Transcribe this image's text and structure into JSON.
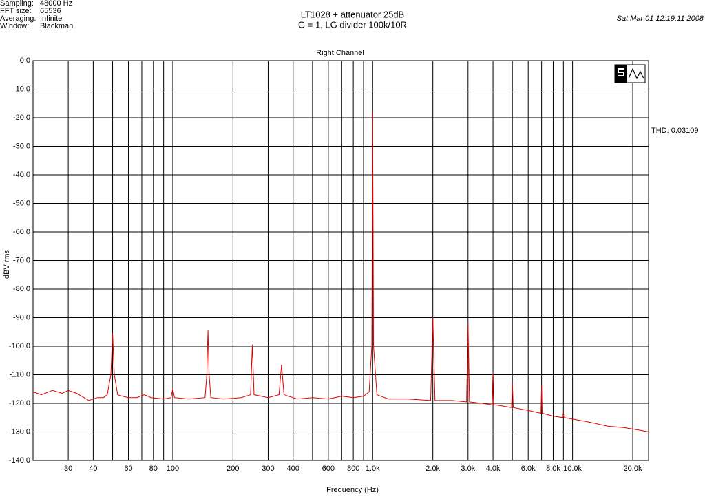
{
  "header": {
    "info": [
      {
        "label": "Sampling:",
        "value": "48000 Hz"
      },
      {
        "label": "FFT size:",
        "value": "65536"
      },
      {
        "label": "Averaging:",
        "value": "Infinite"
      },
      {
        "label": "Window:",
        "value": "Blackman"
      }
    ],
    "timestamp": "Sat Mar 01 12:19:11 2008",
    "thd": "THD: 0.03109"
  },
  "chart_data": {
    "type": "line",
    "title": "LT1028 + attenuator 25dB",
    "subtitle": "G = 1, LG divider 100k/10R",
    "plot_title": "Right Channel",
    "x_label": "Frequency (Hz)",
    "y_label": "dBV rms",
    "xscale": "log",
    "xlim": [
      20,
      24000
    ],
    "ylim": [
      -140,
      0
    ],
    "xticks": [
      30,
      40,
      60,
      80,
      100,
      200,
      300,
      400,
      600,
      800,
      {
        "value": 1000,
        "label": "1.0k"
      },
      {
        "value": 2000,
        "label": "2.0k"
      },
      {
        "value": 3000,
        "label": "3.0k"
      },
      {
        "value": 4000,
        "label": "4.0k"
      },
      {
        "value": 6000,
        "label": "6.0k"
      },
      {
        "value": 8000,
        "label": "8.0k"
      },
      {
        "value": 10000,
        "label": "10.0k"
      },
      {
        "value": 20000,
        "label": "20.0k"
      }
    ],
    "xminor_grid": [
      50,
      70,
      90,
      500,
      700,
      900,
      5000,
      7000,
      9000
    ],
    "yticks": [
      {
        "value": 0,
        "label": "0.0"
      },
      {
        "value": -10,
        "label": "-10.0"
      },
      {
        "value": -20,
        "label": "-20.0"
      },
      {
        "value": -30,
        "label": "-30.0"
      },
      {
        "value": -40,
        "label": "-40.0"
      },
      {
        "value": -50,
        "label": "-50.0"
      },
      {
        "value": -60,
        "label": "-60.0"
      },
      {
        "value": -70,
        "label": "-70.0"
      },
      {
        "value": -80,
        "label": "-80.0"
      },
      {
        "value": -90,
        "label": "-90.0"
      },
      {
        "value": -100,
        "label": "-100.0"
      },
      {
        "value": -110,
        "label": "-110.0"
      },
      {
        "value": -120,
        "label": "-120.0"
      },
      {
        "value": -130,
        "label": "-130.0"
      },
      {
        "value": -140,
        "label": "-140.0"
      }
    ],
    "grid": true,
    "x": [
      20,
      22,
      25,
      28,
      30,
      33,
      36,
      38,
      42,
      45,
      47,
      49,
      50,
      51,
      53,
      56,
      60,
      66,
      72,
      78,
      90,
      98,
      100,
      102,
      120,
      145,
      148,
      150,
      152,
      155,
      180,
      220,
      245,
      250,
      255,
      300,
      340,
      350,
      360,
      420,
      500,
      600,
      700,
      800,
      900,
      960,
      990,
      1000,
      1010,
      1050,
      1200,
      1500,
      1950,
      2000,
      2050,
      2500,
      2950,
      3000,
      3050,
      3500,
      3950,
      4000,
      4050,
      4500,
      4950,
      5000,
      5050,
      6000,
      6950,
      7000,
      7050,
      8000,
      8950,
      9000,
      9050,
      10000,
      12000,
      15000,
      18000,
      20000,
      22000,
      24000
    ],
    "series": [
      {
        "name": "Right Channel",
        "color": "#e00000",
        "values": [
          -116,
          -117,
          -115.5,
          -116.5,
          -115.5,
          -116.5,
          -118,
          -119,
          -118,
          -118,
          -117,
          -110,
          -95.5,
          -110,
          -117,
          -117.5,
          -118,
          -118,
          -117,
          -118,
          -118.5,
          -118,
          -115,
          -118,
          -118.5,
          -118,
          -110,
          -94.5,
          -110,
          -118,
          -118.5,
          -118,
          -117,
          -99.5,
          -117,
          -118,
          -117,
          -106.5,
          -117,
          -118.5,
          -118,
          -118.5,
          -117.5,
          -118,
          -117.5,
          -116,
          -100,
          -18,
          -100,
          -117,
          -118.5,
          -118.5,
          -119,
          -90,
          -119,
          -119,
          -119.5,
          -92,
          -119.5,
          -120,
          -120.5,
          -109,
          -120.5,
          -121,
          -121.5,
          -113,
          -121.5,
          -122.5,
          -123.5,
          -114,
          -123.5,
          -124.5,
          -125,
          -123,
          -125,
          -125.5,
          -126.5,
          -128,
          -128.5,
          -129,
          -129.5,
          -130
        ]
      }
    ]
  }
}
